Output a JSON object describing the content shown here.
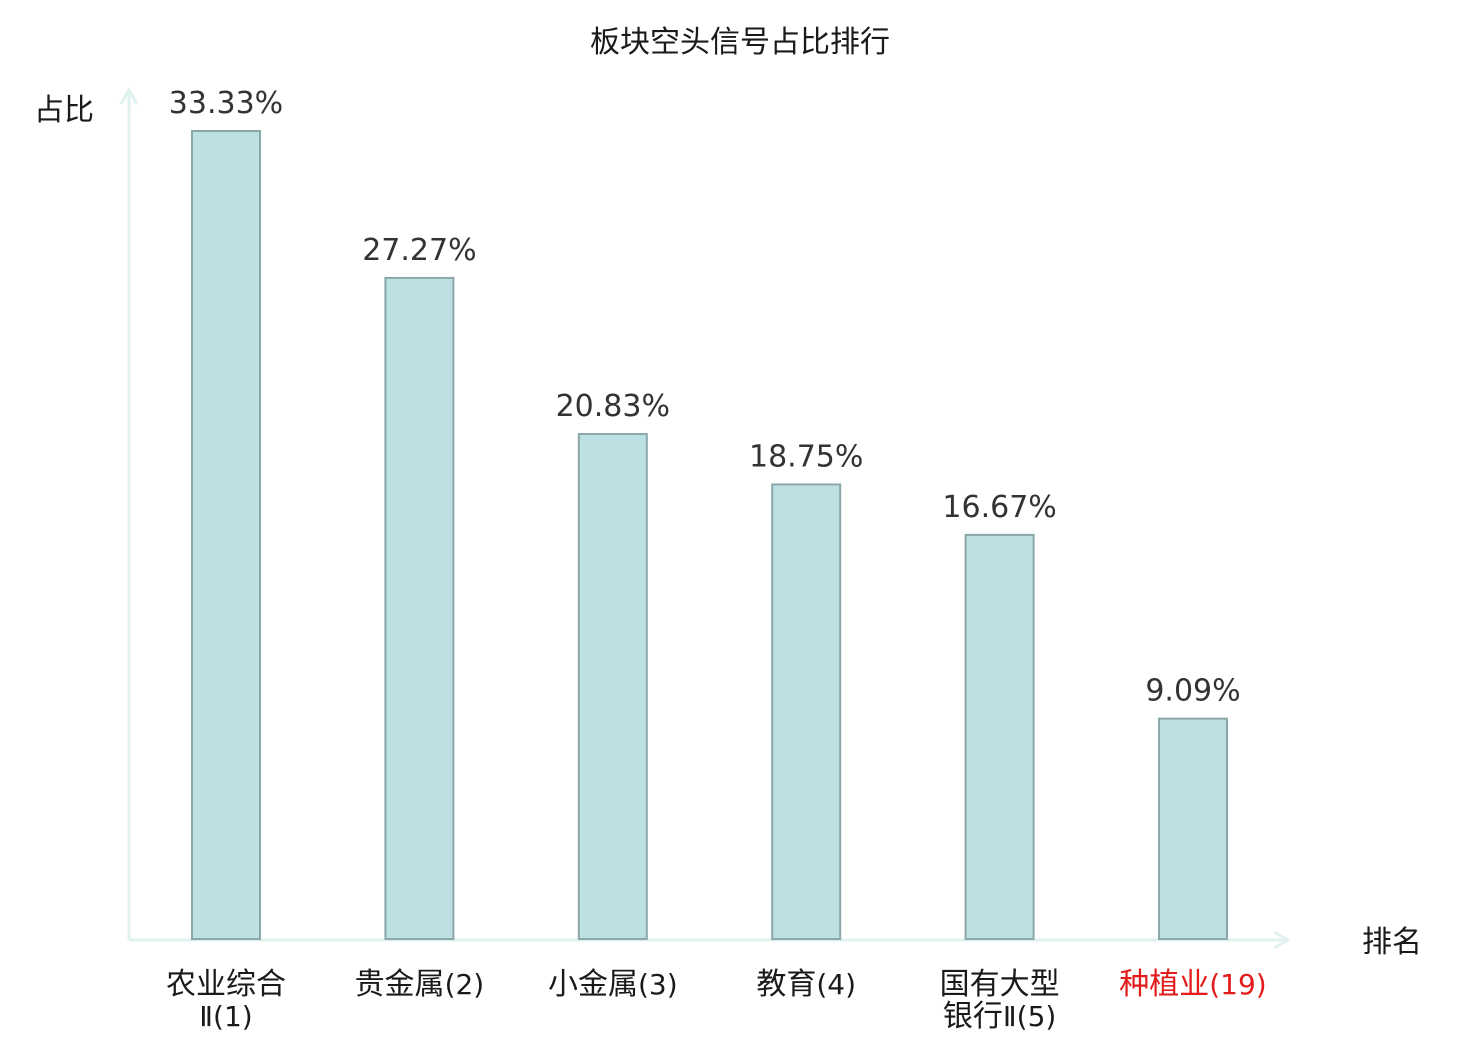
{
  "chart_data": {
    "type": "bar",
    "title": "板块空头信号占比排行",
    "ylabel": "占比",
    "xlabel": "排名",
    "categories": [
      [
        "农业综合",
        "Ⅱ(1)"
      ],
      [
        "贵金属(2)"
      ],
      [
        "小金属(3)"
      ],
      [
        "教育(4)"
      ],
      [
        "国有大型",
        "银行Ⅱ(5)"
      ],
      [
        "种植业(19)"
      ]
    ],
    "values": [
      33.33,
      27.27,
      20.83,
      18.75,
      16.67,
      9.09
    ],
    "value_labels": [
      "33.33%",
      "27.27%",
      "20.83%",
      "18.75%",
      "16.67%",
      "9.09%"
    ],
    "highlight_index": 5,
    "ylim": [
      0,
      33.33
    ],
    "grid": false,
    "colors": {
      "bar_fill": "#bde0e3",
      "bar_stroke": "#8aa7aa",
      "axis": "#dff2ef",
      "label": "#1a1a1a",
      "label_highlight": "#e31b1b",
      "value_text": "#333333"
    }
  }
}
